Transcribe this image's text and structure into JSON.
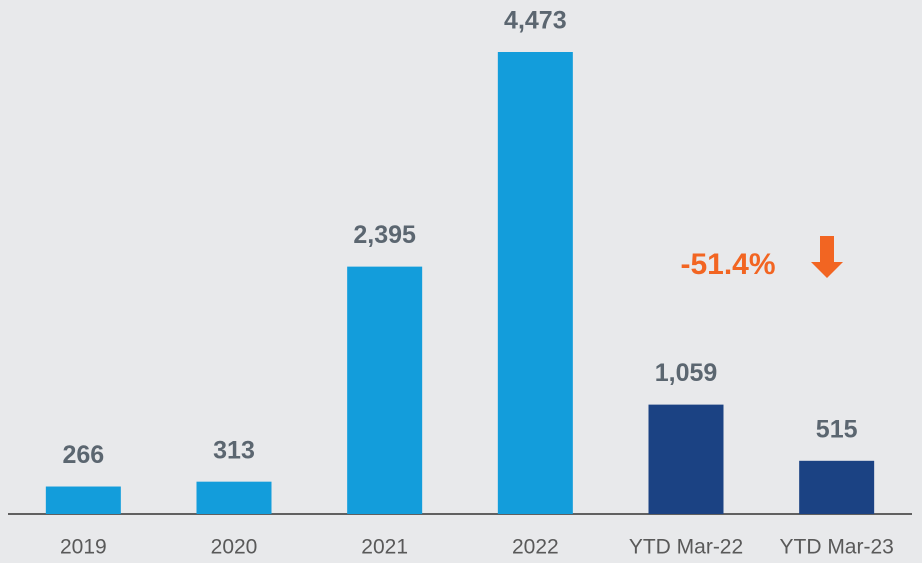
{
  "chart_data": {
    "type": "bar",
    "categories": [
      "2019",
      "2020",
      "2021",
      "2022",
      "YTD Mar-22",
      "YTD Mar-23"
    ],
    "values": [
      266,
      313,
      2395,
      4473,
      1059,
      515
    ],
    "value_labels": [
      "266",
      "313",
      "2,395",
      "4,473",
      "1,059",
      "515"
    ],
    "colors": [
      "#139ddb",
      "#139ddb",
      "#139ddb",
      "#139ddb",
      "#1b4283",
      "#1b4283"
    ],
    "annotation": "-51.4%"
  }
}
